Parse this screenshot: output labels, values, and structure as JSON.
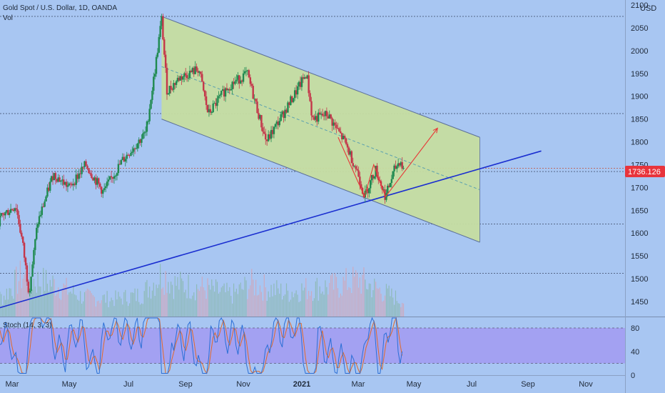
{
  "chart_data": {
    "type": "candlestick",
    "symbol_title": "Gold Spot / U.S. Dollar, 1D, OANDA",
    "volume_label": "Vol",
    "currency": "USD",
    "last_price": "1736.126",
    "price_axis": {
      "ticks": [
        1450,
        1500,
        1550,
        1600,
        1650,
        1700,
        1750,
        1800,
        1850,
        1900,
        1950,
        2000,
        2050,
        2100
      ],
      "top_label": "2100",
      "range": [
        1410,
        2100
      ]
    },
    "time_axis": {
      "labels": [
        {
          "text": "Mar",
          "date": "2020-03-01",
          "bold": false
        },
        {
          "text": "May",
          "date": "2020-05-01",
          "bold": false
        },
        {
          "text": "Jul",
          "date": "2020-07-01",
          "bold": false
        },
        {
          "text": "Sep",
          "date": "2020-09-01",
          "bold": false
        },
        {
          "text": "Nov",
          "date": "2020-11-01",
          "bold": false
        },
        {
          "text": "2021",
          "date": "2021-01-01",
          "bold": true
        },
        {
          "text": "Mar",
          "date": "2021-03-01",
          "bold": false
        },
        {
          "text": "May",
          "date": "2021-05-01",
          "bold": false
        },
        {
          "text": "Jul",
          "date": "2021-07-01",
          "bold": false
        },
        {
          "text": "Sep",
          "date": "2021-09-01",
          "bold": false
        },
        {
          "text": "Nov",
          "date": "2021-11-01",
          "bold": false
        }
      ]
    },
    "price_path": [
      {
        "date": "2020-02-01",
        "price": 1580
      },
      {
        "date": "2020-02-20",
        "price": 1640
      },
      {
        "date": "2020-03-05",
        "price": 1660
      },
      {
        "date": "2020-03-12",
        "price": 1580
      },
      {
        "date": "2020-03-19",
        "price": 1470
      },
      {
        "date": "2020-03-28",
        "price": 1620
      },
      {
        "date": "2020-04-14",
        "price": 1730
      },
      {
        "date": "2020-05-01",
        "price": 1700
      },
      {
        "date": "2020-05-18",
        "price": 1750
      },
      {
        "date": "2020-06-05",
        "price": 1690
      },
      {
        "date": "2020-06-25",
        "price": 1760
      },
      {
        "date": "2020-07-20",
        "price": 1820
      },
      {
        "date": "2020-07-30",
        "price": 1960
      },
      {
        "date": "2020-08-06",
        "price": 2070
      },
      {
        "date": "2020-08-12",
        "price": 1910
      },
      {
        "date": "2020-08-25",
        "price": 1940
      },
      {
        "date": "2020-09-15",
        "price": 1960
      },
      {
        "date": "2020-09-25",
        "price": 1860
      },
      {
        "date": "2020-10-15",
        "price": 1920
      },
      {
        "date": "2020-11-05",
        "price": 1950
      },
      {
        "date": "2020-11-25",
        "price": 1800
      },
      {
        "date": "2020-12-15",
        "price": 1870
      },
      {
        "date": "2021-01-06",
        "price": 1950
      },
      {
        "date": "2021-01-12",
        "price": 1850
      },
      {
        "date": "2021-01-28",
        "price": 1860
      },
      {
        "date": "2021-02-15",
        "price": 1800
      },
      {
        "date": "2021-03-01",
        "price": 1730
      },
      {
        "date": "2021-03-08",
        "price": 1680
      },
      {
        "date": "2021-03-20",
        "price": 1740
      },
      {
        "date": "2021-03-31",
        "price": 1680
      },
      {
        "date": "2021-04-10",
        "price": 1740
      },
      {
        "date": "2021-04-16",
        "price": 1760
      },
      {
        "date": "2021-04-20",
        "price": 1736
      }
    ],
    "volume_data": [
      {
        "date": "2020-02-20",
        "value": 0.45
      },
      {
        "date": "2020-03-12",
        "value": 0.95
      },
      {
        "date": "2020-03-20",
        "value": 0.85
      },
      {
        "date": "2020-04-15",
        "value": 0.75
      },
      {
        "date": "2020-05-15",
        "value": 0.45
      },
      {
        "date": "2020-06-15",
        "value": 0.4
      },
      {
        "date": "2020-07-15",
        "value": 0.5
      },
      {
        "date": "2020-08-07",
        "value": 1.0
      },
      {
        "date": "2020-08-20",
        "value": 0.75
      },
      {
        "date": "2020-09-22",
        "value": 0.65
      },
      {
        "date": "2020-10-20",
        "value": 0.5
      },
      {
        "date": "2020-11-09",
        "value": 0.75
      },
      {
        "date": "2020-12-15",
        "value": 0.55
      },
      {
        "date": "2021-01-08",
        "value": 0.65
      },
      {
        "date": "2021-02-05",
        "value": 0.7
      },
      {
        "date": "2021-03-01",
        "value": 0.85
      },
      {
        "date": "2021-03-25",
        "value": 0.6
      },
      {
        "date": "2021-04-20",
        "value": 0.35
      }
    ],
    "channel": {
      "upper_start": {
        "date": "2020-08-06",
        "price": 2075
      },
      "upper_end": {
        "date": "2021-07-10",
        "price": 1810
      },
      "lower_start": {
        "date": "2020-08-06",
        "price": 1850
      },
      "lower_end": {
        "date": "2021-07-10",
        "price": 1580
      },
      "fill_color": "#c5dda0",
      "edge_color": "#5b6f99"
    },
    "midline": {
      "start": {
        "date": "2020-08-06",
        "price": 1965
      },
      "end": {
        "date": "2021-07-10",
        "price": 1695
      },
      "color": "#5aa0b0"
    },
    "trendline": {
      "start": {
        "date": "2020-02-01",
        "price": 1427
      },
      "end": {
        "date": "2021-09-15",
        "price": 1780
      },
      "color": "#1a2ed0"
    },
    "zigzag": [
      {
        "date": "2021-02-08",
        "price": 1810
      },
      {
        "date": "2021-03-08",
        "price": 1680
      },
      {
        "date": "2021-03-18",
        "price": 1750
      },
      {
        "date": "2021-03-31",
        "price": 1680
      },
      {
        "date": "2021-05-26",
        "price": 1830
      }
    ],
    "zigzag_color": "#e83838",
    "horizontal_levels": [
      2075,
      1862,
      1742,
      1735,
      1620,
      1512
    ],
    "level_colors": [
      "#4a5a7a",
      "#4a5a7a",
      "#c06050",
      "#4a5a7a",
      "#4a5a7a",
      "#4a5a7a"
    ],
    "stochastic": {
      "label": "Stoch (14, 3, 3)",
      "ticks": [
        0,
        40,
        80
      ],
      "bands": [
        20,
        80
      ],
      "band_fill": "#a29cf2",
      "k_color": "#2b6fd6",
      "d_color": "#e06a2a"
    },
    "candle_up_color": "#1f8a50",
    "candle_down_color": "#c4364a",
    "price_tag_color": "#e8343c"
  }
}
